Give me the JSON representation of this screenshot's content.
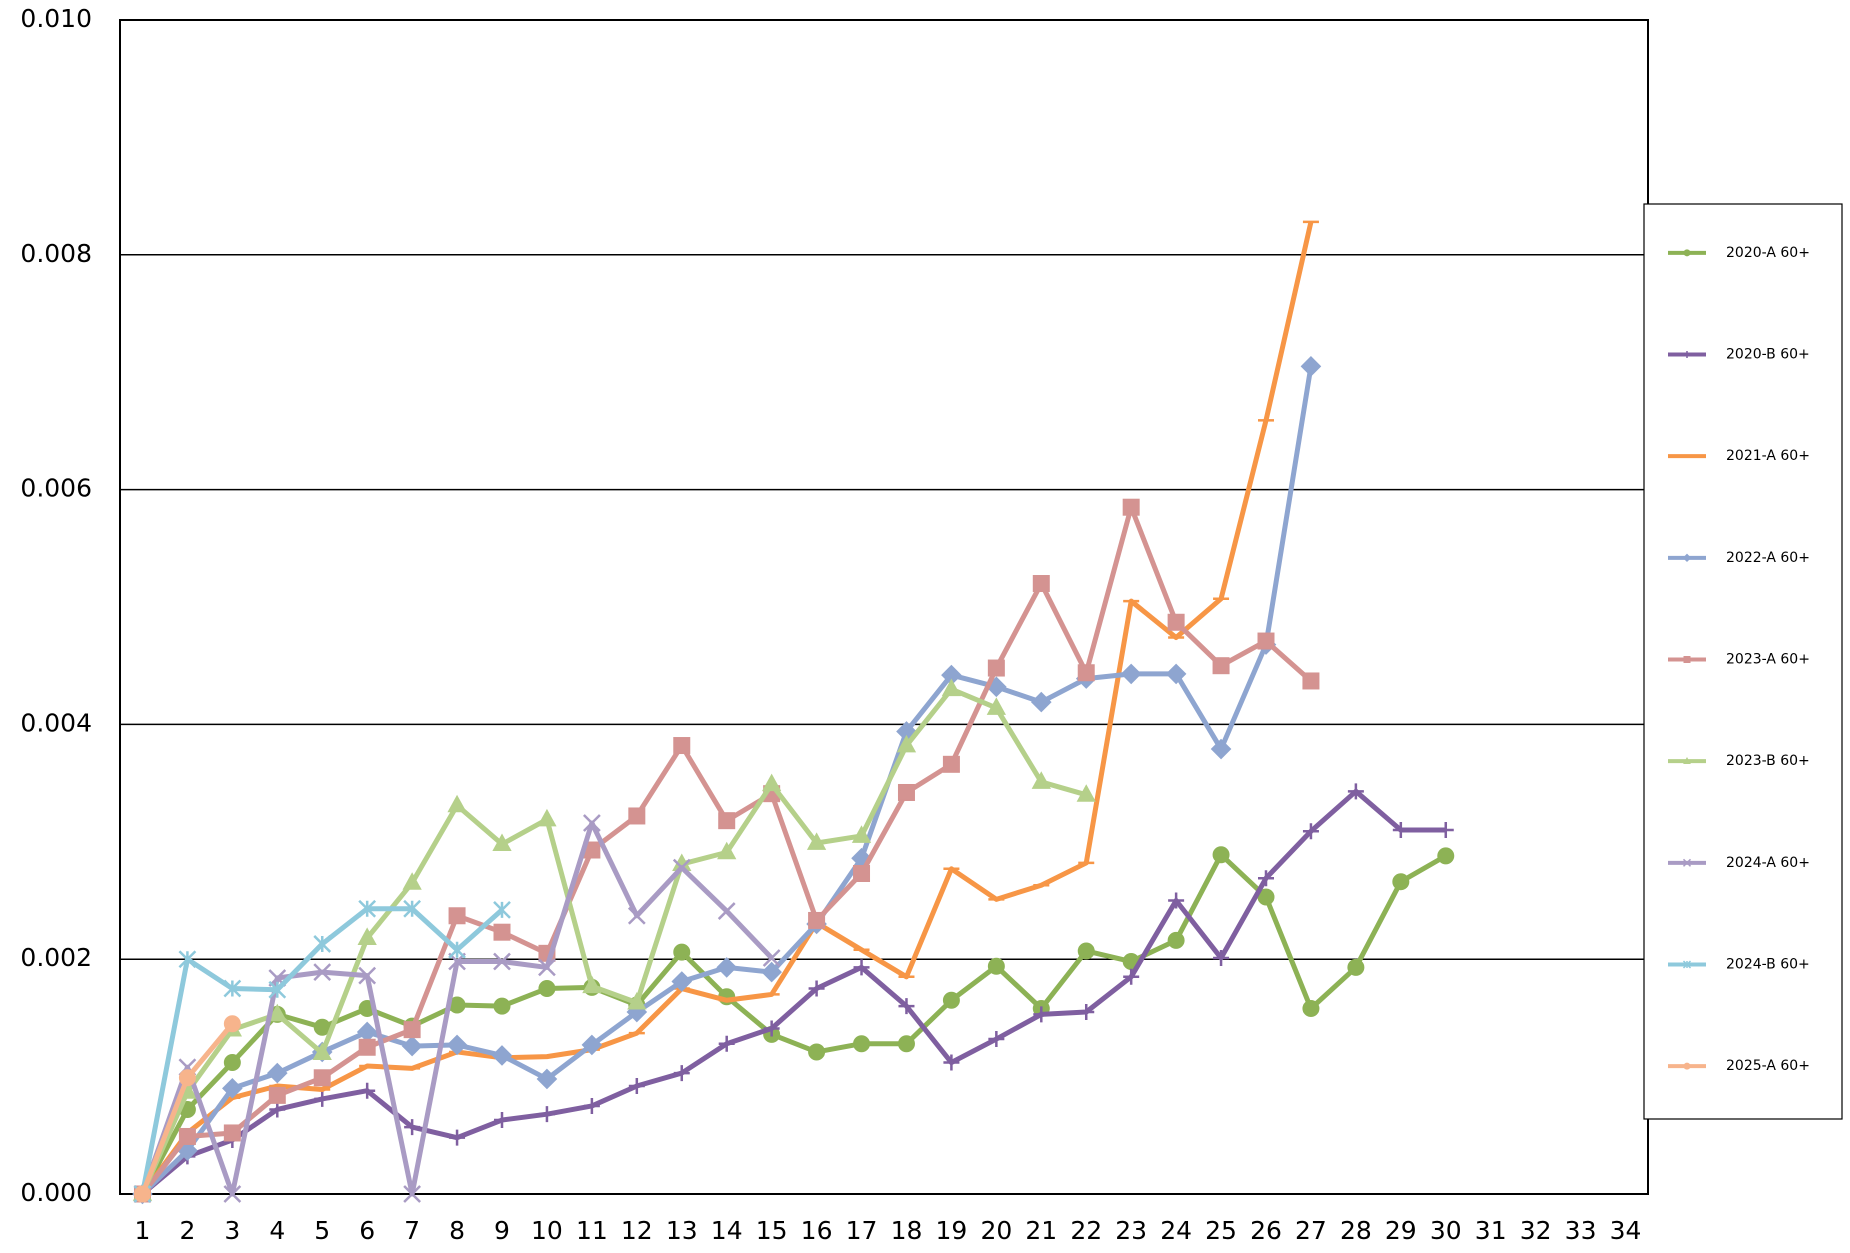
{
  "chart_data": {
    "type": "line",
    "categories": [
      "1",
      "2",
      "3",
      "4",
      "5",
      "6",
      "7",
      "8",
      "9",
      "10",
      "11",
      "12",
      "13",
      "14",
      "15",
      "16",
      "17",
      "18",
      "19",
      "20",
      "21",
      "22",
      "23",
      "24",
      "25",
      "26",
      "27",
      "28",
      "29",
      "30",
      "31",
      "32",
      "33",
      "34"
    ],
    "ylim": [
      0,
      0.01
    ],
    "yticks": [
      {
        "value": 0,
        "label": "0.000"
      },
      {
        "value": 0.002,
        "label": "0.002"
      },
      {
        "value": 0.004,
        "label": "0.004"
      },
      {
        "value": 0.006,
        "label": "0.006"
      },
      {
        "value": 0.008,
        "label": "0.008"
      },
      {
        "value": 0.01,
        "label": "0.010"
      }
    ],
    "grid": true,
    "legend": "right",
    "series": [
      {
        "name": "2020-A 60+",
        "color": "#8db255",
        "marker": "circle",
        "values": [
          0,
          0.00072,
          0.00112,
          0.00153,
          0.00142,
          0.00158,
          0.00143,
          0.00161,
          0.0016,
          0.00175,
          0.00176,
          0.00161,
          0.00206,
          0.00168,
          0.00136,
          0.00121,
          0.00128,
          0.00128,
          0.00165,
          0.00194,
          0.00158,
          0.00207,
          0.00198,
          0.00216,
          0.00289,
          0.00253,
          0.00158,
          0.00193,
          0.00266,
          0.00288,
          null,
          null,
          null,
          null
        ]
      },
      {
        "name": "2020-B 60+",
        "color": "#7f5fa0",
        "marker": "plus",
        "values": [
          0,
          0.00032,
          0.00046,
          0.00072,
          0.00081,
          0.00088,
          0.00057,
          0.00048,
          0.00063,
          0.00068,
          0.00075,
          0.00092,
          0.00103,
          0.00128,
          0.00141,
          0.00175,
          0.00193,
          0.0016,
          0.00112,
          0.00132,
          0.00153,
          0.00155,
          0.00185,
          0.0025,
          0.00201,
          0.00269,
          0.00309,
          0.00343,
          0.0031,
          0.0031,
          null,
          null,
          null,
          null
        ]
      },
      {
        "name": "2021-A 60+",
        "color": "#f79646",
        "marker": "dash",
        "values": [
          0,
          0.00052,
          0.00082,
          0.00092,
          0.00089,
          0.00109,
          0.00107,
          0.00121,
          0.00116,
          0.00117,
          0.00123,
          0.00137,
          0.00175,
          0.00165,
          0.0017,
          0.00231,
          0.00208,
          0.00185,
          0.00277,
          0.00251,
          0.00263,
          0.00282,
          0.00505,
          0.00474,
          0.00507,
          0.00659,
          0.00828,
          null,
          null,
          null,
          null,
          null,
          null,
          null
        ]
      },
      {
        "name": "2022-A 60+",
        "color": "#8ea5d0",
        "marker": "diamond",
        "values": [
          0,
          0.00037,
          0.0009,
          0.00103,
          0.00121,
          0.00138,
          0.00126,
          0.00127,
          0.00118,
          0.00098,
          0.00127,
          0.00155,
          0.00181,
          0.00193,
          0.00189,
          0.0023,
          0.00286,
          0.00394,
          0.00442,
          0.00432,
          0.00419,
          0.00439,
          0.00443,
          0.00443,
          0.00379,
          0.00468,
          0.00705,
          null,
          null,
          null,
          null,
          null,
          null,
          null
        ]
      },
      {
        "name": "2023-A 60+",
        "color": "#d49391",
        "marker": "square",
        "values": [
          0,
          0.00049,
          0.00052,
          0.00084,
          0.00099,
          0.00125,
          0.0014,
          0.00237,
          0.00223,
          0.00205,
          0.00293,
          0.00322,
          0.00382,
          0.00318,
          0.00341,
          0.00233,
          0.00273,
          0.00342,
          0.00366,
          0.00448,
          0.0052,
          0.00444,
          0.00585,
          0.00487,
          0.0045,
          0.00471,
          0.00437,
          null,
          null,
          null,
          null,
          null,
          null,
          null
        ]
      },
      {
        "name": "2023-B 60+",
        "color": "#b5d08a",
        "marker": "triangle",
        "values": [
          0,
          0.00087,
          0.0014,
          0.00153,
          0.0012,
          0.00218,
          0.00265,
          0.00331,
          0.00298,
          0.00319,
          0.00177,
          0.00163,
          0.00281,
          0.00291,
          0.00349,
          0.00299,
          0.00305,
          0.00382,
          0.0043,
          0.00414,
          0.00351,
          0.0034,
          null,
          null,
          null,
          null,
          null,
          null,
          null,
          null,
          null,
          null,
          null,
          null
        ]
      },
      {
        "name": "2024-A 60+",
        "color": "#a99bc4",
        "marker": "x",
        "values": [
          0,
          0.00108,
          0,
          0.00184,
          0.00189,
          0.00186,
          0,
          0.00198,
          0.00198,
          0.00193,
          0.00316,
          0.00237,
          0.00278,
          0.00241,
          0.00201,
          null,
          null,
          null,
          null,
          null,
          null,
          null,
          null,
          null,
          null,
          null,
          null,
          null,
          null,
          null,
          null,
          null,
          null,
          null
        ]
      },
      {
        "name": "2024-B 60+",
        "color": "#8ec9dc",
        "marker": "star",
        "values": [
          0,
          0.002,
          0.00175,
          0.00174,
          0.00213,
          0.00243,
          0.00243,
          0.00208,
          0.00242,
          null,
          null,
          null,
          null,
          null,
          null,
          null,
          null,
          null,
          null,
          null,
          null,
          null,
          null,
          null,
          null,
          null,
          null,
          null,
          null,
          null,
          null,
          null,
          null,
          null
        ]
      },
      {
        "name": "2025-A 60+",
        "color": "#f7b48c",
        "marker": "circle",
        "values": [
          0,
          0.00099,
          0.00145,
          null,
          null,
          null,
          null,
          null,
          null,
          null,
          null,
          null,
          null,
          null,
          null,
          null,
          null,
          null,
          null,
          null,
          null,
          null,
          null,
          null,
          null,
          null,
          null,
          null,
          null,
          null,
          null,
          null,
          null,
          null
        ]
      }
    ]
  }
}
